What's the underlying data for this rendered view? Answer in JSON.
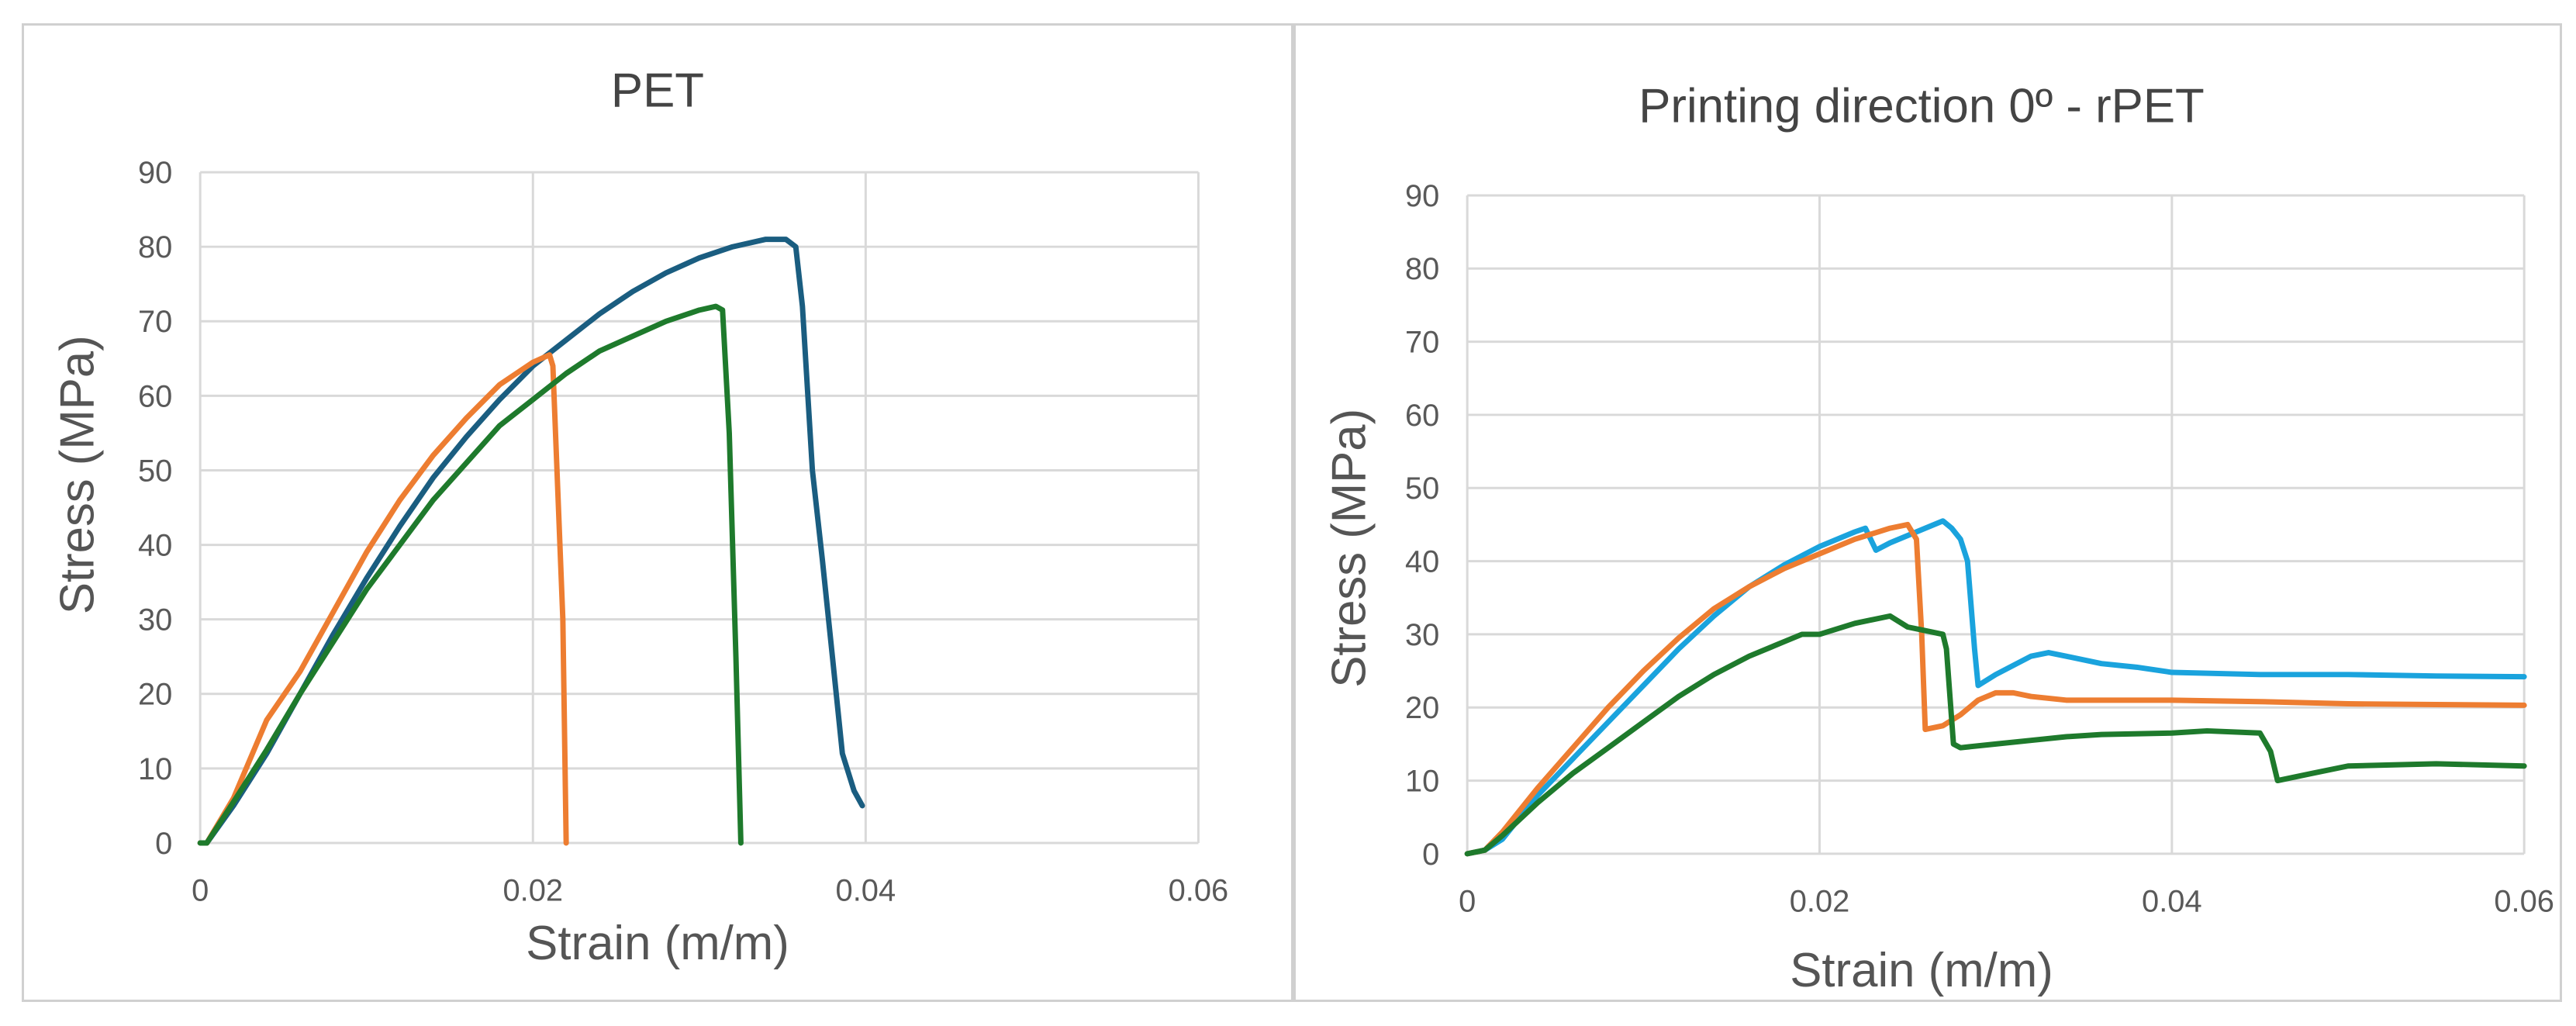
{
  "chart_data": [
    {
      "type": "line",
      "title": "PET",
      "xlabel": "Strain (m/m)",
      "ylabel": "Stress (MPa)",
      "xlim": [
        0,
        0.06
      ],
      "ylim": [
        0,
        90
      ],
      "x_ticks": [
        0,
        0.02,
        0.04,
        0.06
      ],
      "x_tick_labels": [
        "0",
        "0.02",
        "0.04",
        "0.06"
      ],
      "y_ticks": [
        0,
        10,
        20,
        30,
        40,
        50,
        60,
        70,
        80,
        90
      ],
      "y_tick_labels": [
        "0",
        "10",
        "20",
        "30",
        "40",
        "50",
        "60",
        "70",
        "80",
        "90"
      ],
      "grid": "major",
      "series": [
        {
          "color": "#1a5d80",
          "points": [
            [
              0,
              0
            ],
            [
              0.0004,
              0
            ],
            [
              0.002,
              5
            ],
            [
              0.004,
              12
            ],
            [
              0.006,
              20
            ],
            [
              0.008,
              28
            ],
            [
              0.01,
              35.5
            ],
            [
              0.012,
              42.5
            ],
            [
              0.014,
              49
            ],
            [
              0.016,
              54.5
            ],
            [
              0.018,
              59.5
            ],
            [
              0.02,
              64
            ],
            [
              0.022,
              67.5
            ],
            [
              0.024,
              71
            ],
            [
              0.026,
              74
            ],
            [
              0.028,
              76.5
            ],
            [
              0.03,
              78.5
            ],
            [
              0.032,
              80
            ],
            [
              0.034,
              81
            ],
            [
              0.0352,
              81
            ],
            [
              0.0358,
              80
            ],
            [
              0.0362,
              72
            ],
            [
              0.0368,
              50
            ],
            [
              0.0374,
              38
            ],
            [
              0.038,
              25
            ],
            [
              0.0386,
              12
            ],
            [
              0.0393,
              7
            ],
            [
              0.0398,
              5
            ]
          ]
        },
        {
          "color": "#ed7d31",
          "points": [
            [
              0,
              0
            ],
            [
              0.0004,
              0
            ],
            [
              0.002,
              6
            ],
            [
              0.004,
              16.5
            ],
            [
              0.006,
              23
            ],
            [
              0.008,
              31
            ],
            [
              0.01,
              39
            ],
            [
              0.012,
              46
            ],
            [
              0.014,
              52
            ],
            [
              0.016,
              57
            ],
            [
              0.018,
              61.5
            ],
            [
              0.02,
              64.5
            ],
            [
              0.021,
              65.5
            ],
            [
              0.0212,
              64
            ],
            [
              0.0218,
              30
            ],
            [
              0.022,
              0
            ]
          ]
        },
        {
          "color": "#1e7a2c",
          "points": [
            [
              0,
              0
            ],
            [
              0.0004,
              0
            ],
            [
              0.002,
              5.5
            ],
            [
              0.004,
              12.5
            ],
            [
              0.006,
              20
            ],
            [
              0.008,
              27
            ],
            [
              0.01,
              34
            ],
            [
              0.012,
              40
            ],
            [
              0.014,
              46
            ],
            [
              0.016,
              51
            ],
            [
              0.018,
              56
            ],
            [
              0.02,
              59.5
            ],
            [
              0.022,
              63
            ],
            [
              0.024,
              66
            ],
            [
              0.026,
              68
            ],
            [
              0.028,
              70
            ],
            [
              0.03,
              71.5
            ],
            [
              0.031,
              72
            ],
            [
              0.0314,
              71.5
            ],
            [
              0.0318,
              55
            ],
            [
              0.0322,
              25
            ],
            [
              0.0325,
              0
            ]
          ]
        }
      ]
    },
    {
      "type": "line",
      "title": "Printing direction 0º - rPET",
      "xlabel": "Strain (m/m)",
      "ylabel": "Stress (MPa)",
      "xlim": [
        0,
        0.06
      ],
      "ylim": [
        0,
        90
      ],
      "x_ticks": [
        0,
        0.02,
        0.04,
        0.06
      ],
      "x_tick_labels": [
        "0",
        "0.02",
        "0.04",
        "0.06"
      ],
      "y_ticks": [
        0,
        10,
        20,
        30,
        40,
        50,
        60,
        70,
        80,
        90
      ],
      "y_tick_labels": [
        "0",
        "10",
        "20",
        "30",
        "40",
        "50",
        "60",
        "70",
        "80",
        "90"
      ],
      "grid": "major",
      "series": [
        {
          "color": "#1aa3dd",
          "points": [
            [
              0,
              0
            ],
            [
              0.001,
              0.5
            ],
            [
              0.002,
              2
            ],
            [
              0.004,
              8
            ],
            [
              0.006,
              13
            ],
            [
              0.008,
              18
            ],
            [
              0.01,
              23
            ],
            [
              0.012,
              28
            ],
            [
              0.014,
              32.5
            ],
            [
              0.016,
              36.5
            ],
            [
              0.018,
              39.5
            ],
            [
              0.02,
              42
            ],
            [
              0.022,
              44
            ],
            [
              0.0226,
              44.5
            ],
            [
              0.0232,
              41.5
            ],
            [
              0.024,
              42.5
            ],
            [
              0.026,
              44.5
            ],
            [
              0.027,
              45.5
            ],
            [
              0.0275,
              44.5
            ],
            [
              0.028,
              43
            ],
            [
              0.0284,
              40
            ],
            [
              0.0288,
              28
            ],
            [
              0.029,
              23
            ],
            [
              0.03,
              24.5
            ],
            [
              0.032,
              27
            ],
            [
              0.033,
              27.5
            ],
            [
              0.034,
              27
            ],
            [
              0.036,
              26
            ],
            [
              0.038,
              25.5
            ],
            [
              0.04,
              24.8
            ],
            [
              0.045,
              24.5
            ],
            [
              0.05,
              24.5
            ],
            [
              0.055,
              24.3
            ],
            [
              0.06,
              24.2
            ]
          ]
        },
        {
          "color": "#ed7d31",
          "points": [
            [
              0,
              0
            ],
            [
              0.001,
              0.5
            ],
            [
              0.002,
              3
            ],
            [
              0.004,
              9
            ],
            [
              0.006,
              14.5
            ],
            [
              0.008,
              20
            ],
            [
              0.01,
              25
            ],
            [
              0.012,
              29.5
            ],
            [
              0.014,
              33.5
            ],
            [
              0.016,
              36.5
            ],
            [
              0.018,
              39
            ],
            [
              0.02,
              41
            ],
            [
              0.022,
              43
            ],
            [
              0.024,
              44.5
            ],
            [
              0.025,
              45
            ],
            [
              0.0255,
              43
            ],
            [
              0.0258,
              30
            ],
            [
              0.026,
              17
            ],
            [
              0.027,
              17.5
            ],
            [
              0.028,
              19
            ],
            [
              0.029,
              21
            ],
            [
              0.03,
              22
            ],
            [
              0.031,
              22
            ],
            [
              0.032,
              21.5
            ],
            [
              0.034,
              21
            ],
            [
              0.036,
              21
            ],
            [
              0.04,
              21
            ],
            [
              0.045,
              20.8
            ],
            [
              0.05,
              20.5
            ],
            [
              0.055,
              20.4
            ],
            [
              0.06,
              20.3
            ]
          ]
        },
        {
          "color": "#1e7a2c",
          "points": [
            [
              0,
              0
            ],
            [
              0.001,
              0.5
            ],
            [
              0.002,
              2.5
            ],
            [
              0.004,
              7
            ],
            [
              0.006,
              11
            ],
            [
              0.008,
              14.5
            ],
            [
              0.01,
              18
            ],
            [
              0.012,
              21.5
            ],
            [
              0.014,
              24.5
            ],
            [
              0.016,
              27
            ],
            [
              0.018,
              29
            ],
            [
              0.019,
              30
            ],
            [
              0.02,
              30
            ],
            [
              0.022,
              31.5
            ],
            [
              0.024,
              32.5
            ],
            [
              0.025,
              31
            ],
            [
              0.026,
              30.5
            ],
            [
              0.027,
              30
            ],
            [
              0.0272,
              28
            ],
            [
              0.0276,
              15
            ],
            [
              0.028,
              14.5
            ],
            [
              0.03,
              15
            ],
            [
              0.032,
              15.5
            ],
            [
              0.034,
              16
            ],
            [
              0.036,
              16.3
            ],
            [
              0.04,
              16.5
            ],
            [
              0.042,
              16.8
            ],
            [
              0.045,
              16.5
            ],
            [
              0.0456,
              14
            ],
            [
              0.046,
              10
            ],
            [
              0.048,
              11
            ],
            [
              0.05,
              12
            ],
            [
              0.055,
              12.3
            ],
            [
              0.06,
              12
            ]
          ]
        }
      ]
    }
  ]
}
